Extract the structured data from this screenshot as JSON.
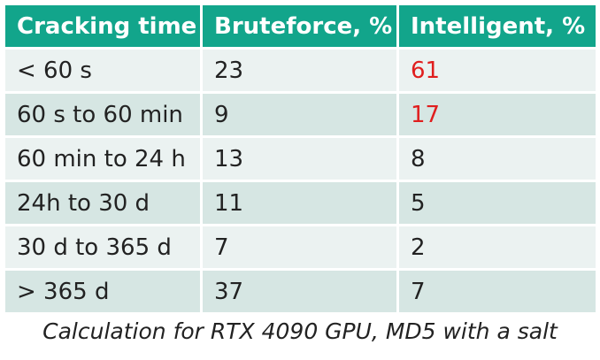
{
  "table": {
    "headers": [
      "Cracking time",
      "Bruteforce, %",
      "Intelligent, %"
    ],
    "rows": [
      [
        "< 60 s",
        "23",
        "61"
      ],
      [
        "60 s to 60 min",
        "9",
        "17"
      ],
      [
        "60 min to 24 h",
        "13",
        "8"
      ],
      [
        "24h to 30 d",
        "11",
        "5"
      ],
      [
        "30 d to 365 d",
        "7",
        "2"
      ],
      [
        "> 365 d",
        "37",
        "7"
      ]
    ]
  },
  "caption": "Calculation for RTX 4090 GPU, MD5 with a salt",
  "colors": {
    "header_bg": "#12a58b",
    "row_light": "#ebf2f1",
    "row_dark": "#d6e6e3",
    "highlight": "#e01e1e"
  }
}
